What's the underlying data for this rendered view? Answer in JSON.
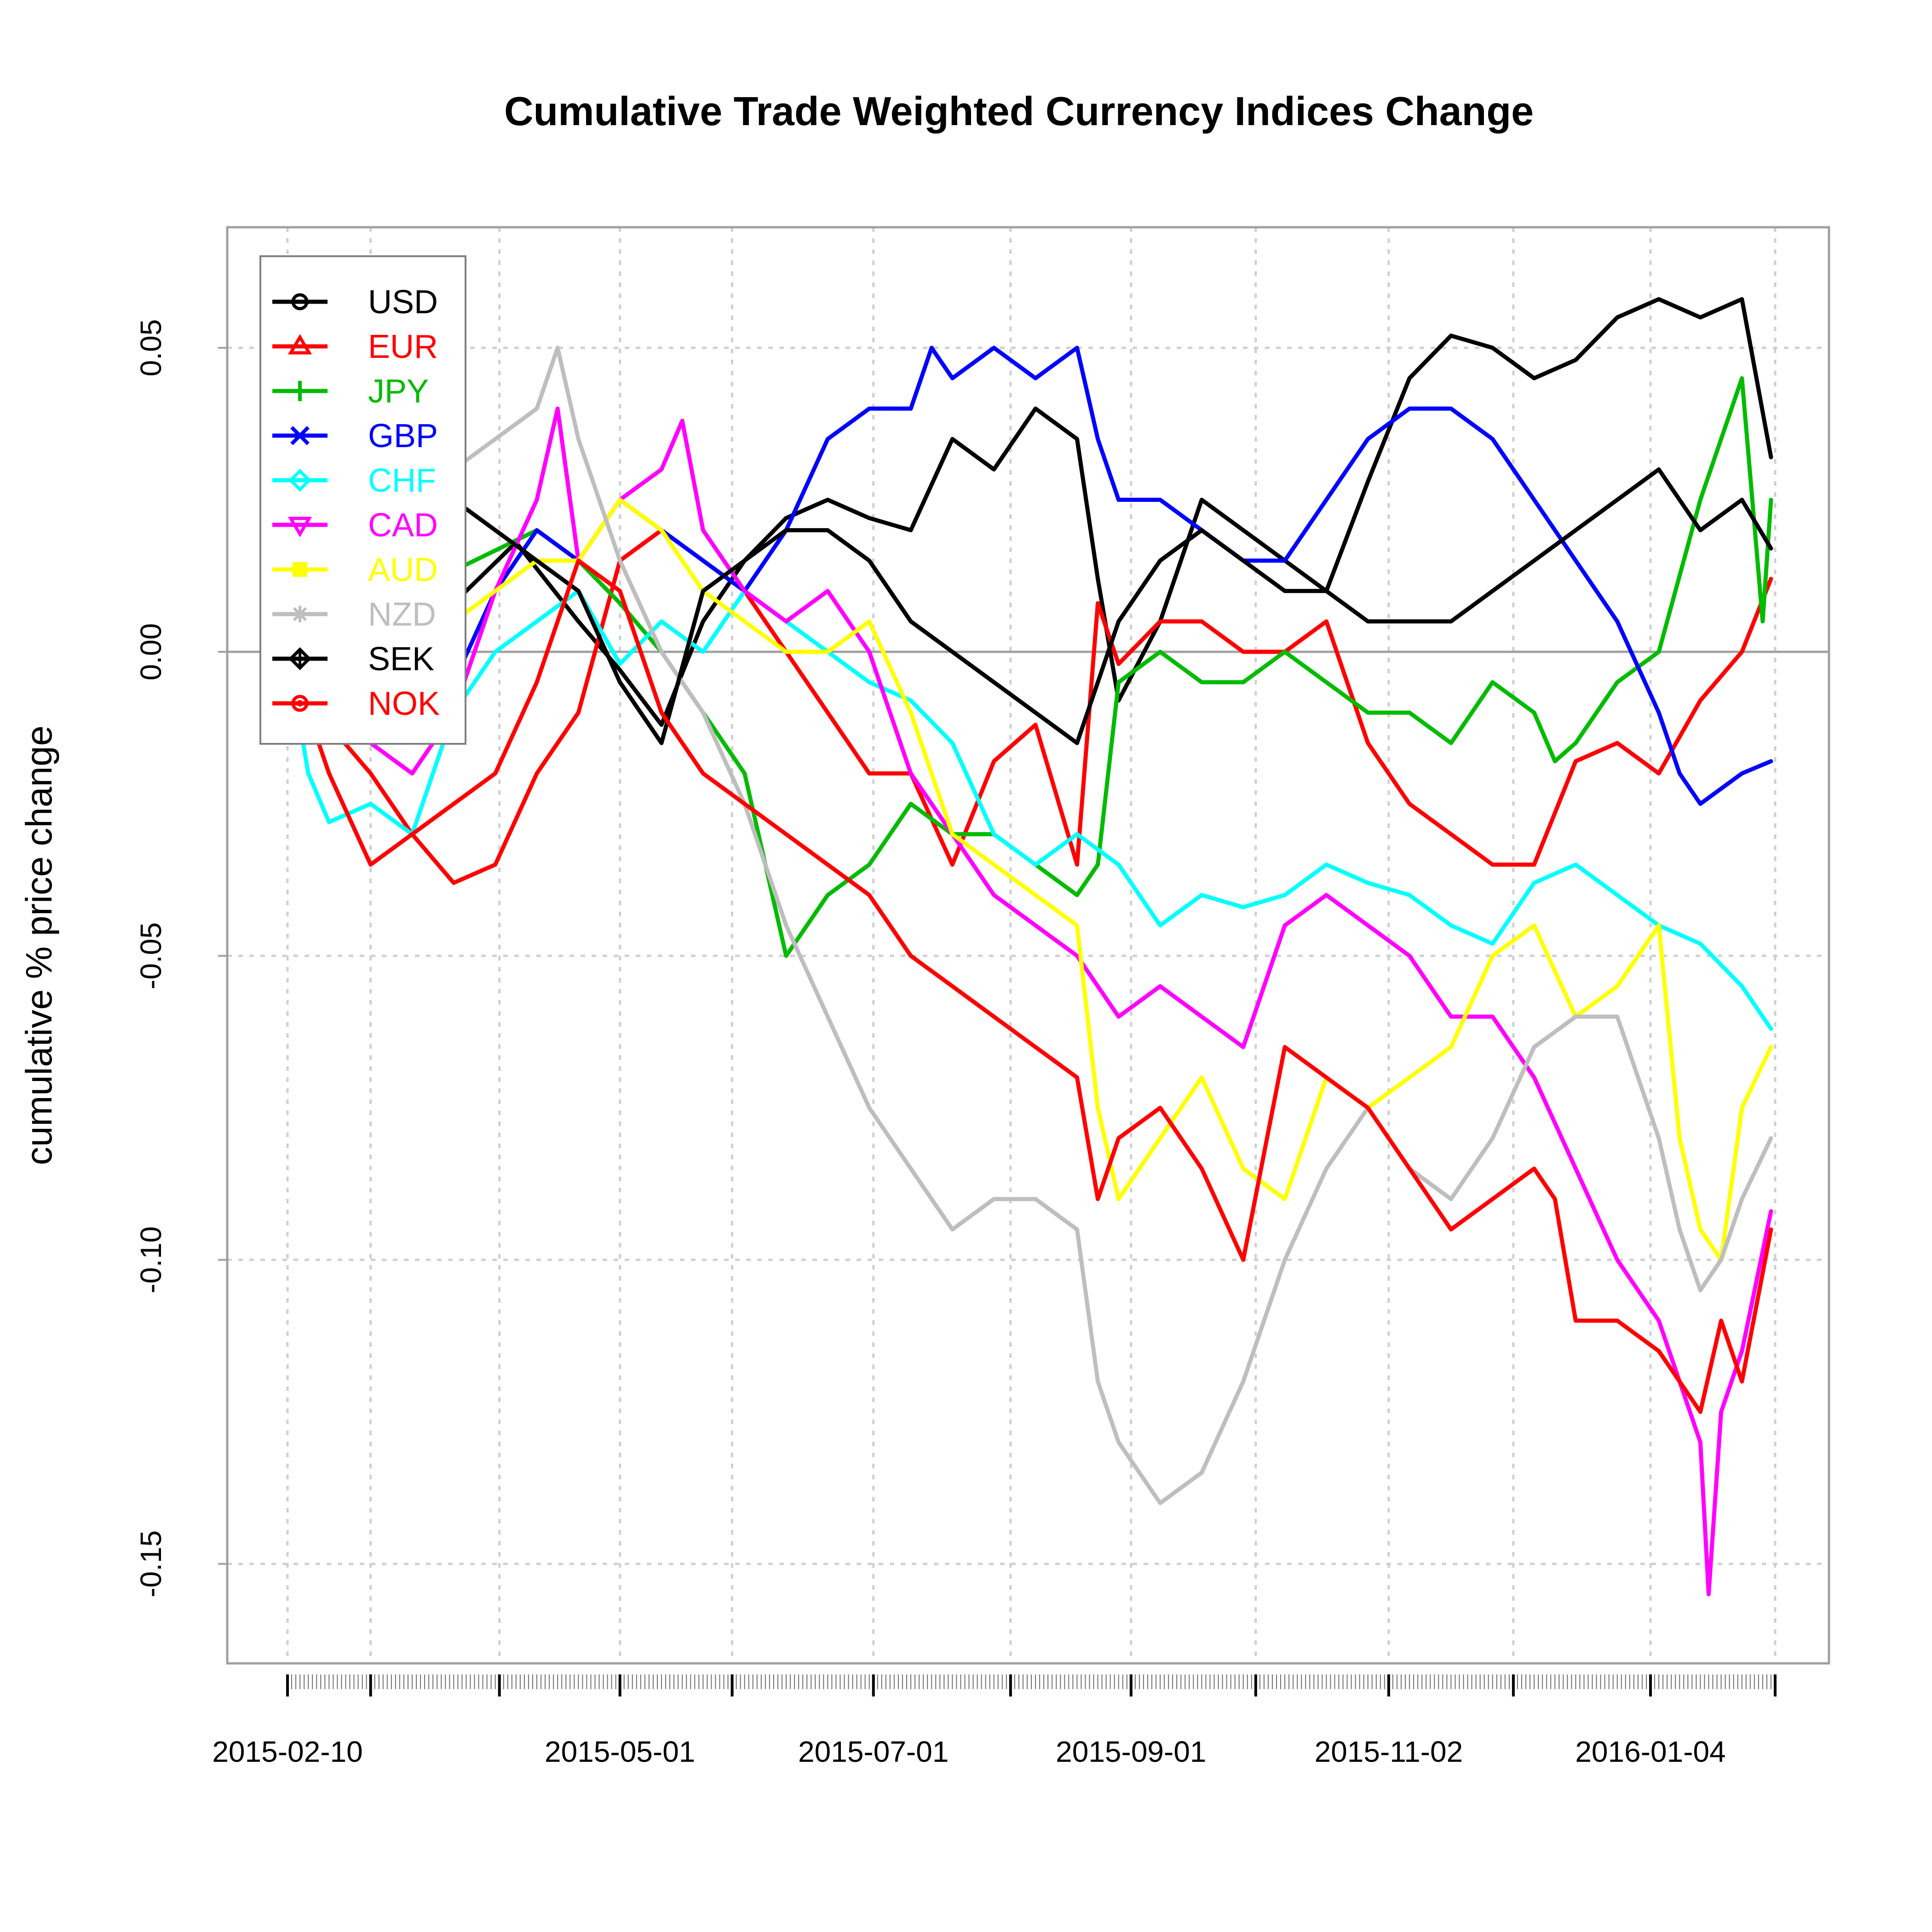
{
  "chart_data": {
    "type": "line",
    "title": "Cumulative Trade Weighted Currency Indices Change",
    "xlabel": "",
    "ylabel": "cumulative % price change",
    "ylim": [
      -0.165,
      0.07
    ],
    "yticks": [
      0.05,
      0.0,
      -0.05,
      -0.1,
      -0.15
    ],
    "ytick_labels": [
      "0.05",
      "0.00",
      "-0.05",
      "-0.10",
      "-0.15"
    ],
    "x_range_days": [
      0,
      357
    ],
    "x_start": "2015-02-10",
    "x_labels": [
      {
        "day": 0,
        "label": "2015-02-10"
      },
      {
        "day": 80,
        "label": "2015-05-01"
      },
      {
        "day": 141,
        "label": "2015-07-01"
      },
      {
        "day": 203,
        "label": "2015-09-01"
      },
      {
        "day": 265,
        "label": "2015-11-02"
      },
      {
        "day": 328,
        "label": "2016-01-04"
      }
    ],
    "x_major_ticks": [
      0,
      20,
      51,
      80,
      107,
      141,
      174,
      203,
      233,
      265,
      295,
      328,
      358
    ],
    "grid": true,
    "legend_position": "top-left",
    "series": [
      {
        "name": "USD",
        "color": "#000000",
        "marker": "circle",
        "x": [
          0,
          10,
          25,
          40,
          55,
          70,
          80,
          90,
          100,
          110,
          120,
          130,
          140,
          150,
          160,
          170,
          180,
          190,
          195,
          200,
          210,
          220,
          230,
          240,
          250,
          260,
          270,
          280,
          290,
          300,
          310,
          320,
          330,
          340,
          350,
          357
        ],
        "y": [
          0,
          0.012,
          0.025,
          0.008,
          0.018,
          0.005,
          -0.003,
          -0.012,
          0.005,
          0.015,
          0.022,
          0.025,
          0.022,
          0.02,
          0.035,
          0.03,
          0.04,
          0.035,
          0.012,
          -0.008,
          0.005,
          0.025,
          0.02,
          0.015,
          0.01,
          0.028,
          0.045,
          0.052,
          0.05,
          0.045,
          0.048,
          0.055,
          0.058,
          0.055,
          0.058,
          0.032
        ]
      },
      {
        "name": "EUR",
        "color": "#ff0000",
        "marker": "triangle",
        "x": [
          0,
          10,
          20,
          30,
          40,
          50,
          60,
          70,
          80,
          90,
          100,
          110,
          120,
          130,
          140,
          150,
          160,
          170,
          180,
          190,
          195,
          200,
          210,
          220,
          230,
          240,
          250,
          260,
          270,
          280,
          290,
          300,
          310,
          320,
          330,
          340,
          350,
          357
        ],
        "y": [
          0,
          -0.012,
          -0.02,
          -0.03,
          -0.038,
          -0.035,
          -0.02,
          -0.01,
          0.015,
          0.02,
          0.015,
          0.01,
          0.0,
          -0.01,
          -0.02,
          -0.02,
          -0.035,
          -0.018,
          -0.012,
          -0.035,
          0.008,
          -0.002,
          0.005,
          0.005,
          0.0,
          0.0,
          0.005,
          -0.015,
          -0.025,
          -0.03,
          -0.035,
          -0.035,
          -0.018,
          -0.015,
          -0.02,
          -0.008,
          0.0,
          0.012
        ]
      },
      {
        "name": "JPY",
        "color": "#00bb00",
        "marker": "plus",
        "x": [
          0,
          15,
          30,
          45,
          60,
          70,
          80,
          90,
          100,
          110,
          115,
          120,
          125,
          130,
          140,
          150,
          160,
          170,
          180,
          190,
          195,
          200,
          210,
          220,
          230,
          240,
          250,
          260,
          270,
          280,
          290,
          300,
          305,
          310,
          320,
          330,
          340,
          345,
          350,
          355,
          357
        ],
        "y": [
          0,
          0.005,
          0.01,
          0.015,
          0.02,
          0.015,
          0.008,
          0.0,
          -0.01,
          -0.02,
          -0.035,
          -0.05,
          -0.045,
          -0.04,
          -0.035,
          -0.025,
          -0.03,
          -0.03,
          -0.035,
          -0.04,
          -0.035,
          -0.005,
          0.0,
          -0.005,
          -0.005,
          0.0,
          -0.005,
          -0.01,
          -0.01,
          -0.015,
          -0.005,
          -0.01,
          -0.018,
          -0.015,
          -0.005,
          0.0,
          0.025,
          0.035,
          0.045,
          0.005,
          0.025
        ]
      },
      {
        "name": "GBP",
        "color": "#0000ff",
        "marker": "cross",
        "x": [
          0,
          10,
          20,
          30,
          40,
          50,
          60,
          70,
          80,
          90,
          100,
          110,
          120,
          130,
          140,
          150,
          155,
          160,
          170,
          180,
          190,
          195,
          200,
          210,
          220,
          230,
          240,
          250,
          260,
          270,
          280,
          290,
          300,
          310,
          320,
          330,
          335,
          340,
          350,
          357
        ],
        "y": [
          0,
          -0.005,
          -0.01,
          0.0,
          -0.005,
          0.01,
          0.02,
          0.015,
          0.025,
          0.02,
          0.015,
          0.01,
          0.02,
          0.035,
          0.04,
          0.04,
          0.05,
          0.045,
          0.05,
          0.045,
          0.05,
          0.035,
          0.025,
          0.025,
          0.02,
          0.015,
          0.015,
          0.025,
          0.035,
          0.04,
          0.04,
          0.035,
          0.025,
          0.015,
          0.005,
          -0.01,
          -0.02,
          -0.025,
          -0.02,
          -0.018
        ]
      },
      {
        "name": "CHF",
        "color": "#00ffff",
        "marker": "diamond",
        "x": [
          0,
          5,
          10,
          20,
          30,
          40,
          50,
          60,
          70,
          80,
          90,
          100,
          110,
          120,
          130,
          140,
          150,
          160,
          170,
          180,
          190,
          200,
          210,
          220,
          230,
          240,
          250,
          260,
          270,
          280,
          290,
          300,
          310,
          320,
          330,
          340,
          350,
          357
        ],
        "y": [
          0,
          -0.02,
          -0.028,
          -0.025,
          -0.03,
          -0.01,
          0.0,
          0.005,
          0.01,
          -0.002,
          0.005,
          0.0,
          0.01,
          0.005,
          0.0,
          -0.005,
          -0.008,
          -0.015,
          -0.03,
          -0.035,
          -0.03,
          -0.035,
          -0.045,
          -0.04,
          -0.042,
          -0.04,
          -0.035,
          -0.038,
          -0.04,
          -0.045,
          -0.048,
          -0.038,
          -0.035,
          -0.04,
          -0.045,
          -0.048,
          -0.055,
          -0.062
        ]
      },
      {
        "name": "CAD",
        "color": "#ff00ff",
        "marker": "triangle-down",
        "x": [
          0,
          10,
          20,
          30,
          40,
          50,
          60,
          65,
          70,
          80,
          90,
          95,
          100,
          110,
          120,
          130,
          140,
          150,
          160,
          170,
          180,
          190,
          200,
          210,
          220,
          230,
          240,
          250,
          260,
          270,
          280,
          290,
          300,
          310,
          320,
          330,
          340,
          342,
          345,
          350,
          357
        ],
        "y": [
          0,
          -0.005,
          -0.015,
          -0.02,
          -0.01,
          0.01,
          0.025,
          0.04,
          0.015,
          0.025,
          0.03,
          0.038,
          0.02,
          0.01,
          0.005,
          0.01,
          0.0,
          -0.02,
          -0.03,
          -0.04,
          -0.045,
          -0.05,
          -0.06,
          -0.055,
          -0.06,
          -0.065,
          -0.045,
          -0.04,
          -0.045,
          -0.05,
          -0.06,
          -0.06,
          -0.07,
          -0.085,
          -0.1,
          -0.11,
          -0.13,
          -0.155,
          -0.125,
          -0.115,
          -0.092
        ]
      },
      {
        "name": "AUD",
        "color": "#ffff00",
        "marker": "square",
        "x": [
          0,
          10,
          20,
          30,
          40,
          50,
          60,
          70,
          80,
          90,
          100,
          110,
          120,
          130,
          140,
          150,
          160,
          170,
          180,
          190,
          195,
          200,
          210,
          220,
          230,
          240,
          250,
          260,
          270,
          280,
          290,
          300,
          310,
          320,
          330,
          335,
          340,
          345,
          350,
          357
        ],
        "y": [
          0,
          0.005,
          0.0,
          -0.005,
          0.005,
          0.01,
          0.015,
          0.015,
          0.025,
          0.02,
          0.01,
          0.005,
          0.0,
          0.0,
          0.005,
          -0.01,
          -0.03,
          -0.035,
          -0.04,
          -0.045,
          -0.075,
          -0.09,
          -0.08,
          -0.07,
          -0.085,
          -0.09,
          -0.07,
          -0.075,
          -0.07,
          -0.065,
          -0.05,
          -0.045,
          -0.06,
          -0.055,
          -0.045,
          -0.08,
          -0.095,
          -0.1,
          -0.075,
          -0.065
        ]
      },
      {
        "name": "NZD",
        "color": "#bebebe",
        "marker": "asterisk",
        "x": [
          0,
          10,
          20,
          30,
          40,
          50,
          60,
          65,
          70,
          80,
          90,
          100,
          110,
          120,
          130,
          140,
          150,
          160,
          170,
          180,
          190,
          195,
          200,
          210,
          220,
          230,
          240,
          250,
          260,
          270,
          280,
          290,
          300,
          310,
          320,
          330,
          335,
          340,
          345,
          350,
          357
        ],
        "y": [
          0,
          0.01,
          0.02,
          0.025,
          0.03,
          0.035,
          0.04,
          0.05,
          0.035,
          0.015,
          0.0,
          -0.01,
          -0.025,
          -0.045,
          -0.06,
          -0.075,
          -0.085,
          -0.095,
          -0.09,
          -0.09,
          -0.095,
          -0.12,
          -0.13,
          -0.14,
          -0.135,
          -0.12,
          -0.1,
          -0.085,
          -0.075,
          -0.085,
          -0.09,
          -0.08,
          -0.065,
          -0.06,
          -0.06,
          -0.08,
          -0.095,
          -0.105,
          -0.1,
          -0.09,
          -0.08
        ]
      },
      {
        "name": "SEK",
        "color": "#000000",
        "marker": "diamond-plus",
        "x": [
          0,
          10,
          20,
          30,
          40,
          50,
          60,
          70,
          80,
          90,
          100,
          110,
          120,
          130,
          140,
          150,
          160,
          170,
          180,
          190,
          195,
          200,
          210,
          220,
          230,
          240,
          250,
          260,
          270,
          280,
          290,
          300,
          310,
          320,
          330,
          340,
          350,
          357
        ],
        "y": [
          0,
          0.015,
          0.02,
          0.03,
          0.025,
          0.02,
          0.015,
          0.01,
          -0.005,
          -0.015,
          0.01,
          0.015,
          0.02,
          0.02,
          0.015,
          0.005,
          0.0,
          -0.005,
          -0.01,
          -0.015,
          -0.005,
          0.005,
          0.015,
          0.02,
          0.015,
          0.01,
          0.01,
          0.005,
          0.005,
          0.005,
          0.01,
          0.015,
          0.02,
          0.025,
          0.03,
          0.02,
          0.025,
          0.017
        ]
      },
      {
        "name": "NOK",
        "color": "#ff0000",
        "marker": "circle-filled",
        "x": [
          0,
          10,
          20,
          30,
          40,
          50,
          60,
          70,
          80,
          90,
          100,
          110,
          120,
          130,
          140,
          150,
          160,
          170,
          180,
          190,
          195,
          200,
          210,
          220,
          230,
          240,
          250,
          260,
          270,
          280,
          290,
          300,
          305,
          310,
          320,
          330,
          340,
          345,
          350,
          357
        ],
        "y": [
          0,
          -0.02,
          -0.035,
          -0.03,
          -0.025,
          -0.02,
          -0.005,
          0.015,
          0.01,
          -0.01,
          -0.02,
          -0.025,
          -0.03,
          -0.035,
          -0.04,
          -0.05,
          -0.055,
          -0.06,
          -0.065,
          -0.07,
          -0.09,
          -0.08,
          -0.075,
          -0.085,
          -0.1,
          -0.065,
          -0.07,
          -0.075,
          -0.085,
          -0.095,
          -0.09,
          -0.085,
          -0.09,
          -0.11,
          -0.11,
          -0.115,
          -0.125,
          -0.11,
          -0.12,
          -0.095
        ]
      }
    ]
  }
}
